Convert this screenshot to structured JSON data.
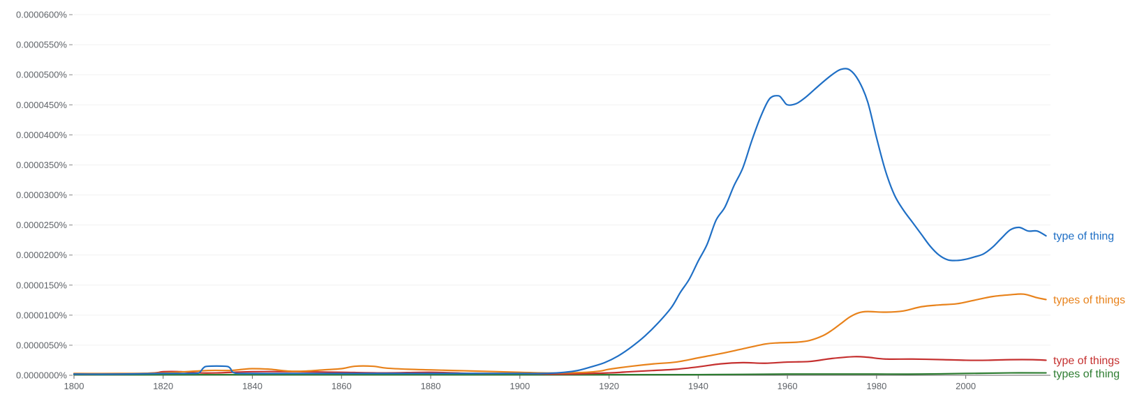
{
  "chart_data": {
    "type": "line",
    "title": "",
    "xlabel": "",
    "ylabel": "",
    "xlim": [
      1800,
      2019
    ],
    "ylim": [
      0,
      6e-05
    ],
    "grid": true,
    "legend": "inline-right",
    "x_ticks": [
      1800,
      1820,
      1840,
      1860,
      1880,
      1900,
      1920,
      1940,
      1960,
      1980,
      2000
    ],
    "y_ticks": [
      {
        "value": 0.0,
        "label": "0.0000000%"
      },
      {
        "value": 5e-06,
        "label": "0.0000050%"
      },
      {
        "value": 1e-05,
        "label": "0.0000100%"
      },
      {
        "value": 1.5e-05,
        "label": "0.0000150%"
      },
      {
        "value": 2e-05,
        "label": "0.0000200%"
      },
      {
        "value": 2.5e-05,
        "label": "0.0000250%"
      },
      {
        "value": 3e-05,
        "label": "0.0000300%"
      },
      {
        "value": 3.5e-05,
        "label": "0.0000350%"
      },
      {
        "value": 4e-05,
        "label": "0.0000400%"
      },
      {
        "value": 4.5e-05,
        "label": "0.0000450%"
      },
      {
        "value": 5e-05,
        "label": "0.0000500%"
      },
      {
        "value": 5.5e-05,
        "label": "0.0000550%"
      },
      {
        "value": 6e-05,
        "label": "0.0000600%"
      }
    ],
    "series": [
      {
        "name": "type of thing",
        "color": "#1f6fc5",
        "points": [
          [
            1800,
            2e-07
          ],
          [
            1810,
            2e-07
          ],
          [
            1820,
            3e-07
          ],
          [
            1826,
            3e-07
          ],
          [
            1828,
            4e-07
          ],
          [
            1829,
            1.2e-06
          ],
          [
            1830,
            1.5e-06
          ],
          [
            1834,
            1.5e-06
          ],
          [
            1835,
            1.2e-06
          ],
          [
            1836,
            4e-07
          ],
          [
            1840,
            3e-07
          ],
          [
            1860,
            3e-07
          ],
          [
            1880,
            3e-07
          ],
          [
            1900,
            3e-07
          ],
          [
            1905,
            3e-07
          ],
          [
            1910,
            5e-07
          ],
          [
            1913,
            8e-07
          ],
          [
            1916,
            1.4e-06
          ],
          [
            1919,
            2.1e-06
          ],
          [
            1922,
            3.2e-06
          ],
          [
            1925,
            4.7e-06
          ],
          [
            1928,
            6.5e-06
          ],
          [
            1931,
            8.7e-06
          ],
          [
            1934,
            1.13e-05
          ],
          [
            1936,
            1.38e-05
          ],
          [
            1938,
            1.6e-05
          ],
          [
            1940,
            1.9e-05
          ],
          [
            1942,
            2.18e-05
          ],
          [
            1944,
            2.58e-05
          ],
          [
            1946,
            2.8e-05
          ],
          [
            1948,
            3.15e-05
          ],
          [
            1950,
            3.45e-05
          ],
          [
            1952,
            3.9e-05
          ],
          [
            1954,
            4.3e-05
          ],
          [
            1956,
            4.6e-05
          ],
          [
            1958,
            4.65e-05
          ],
          [
            1959,
            4.58e-05
          ],
          [
            1960,
            4.5e-05
          ],
          [
            1962,
            4.52e-05
          ],
          [
            1964,
            4.62e-05
          ],
          [
            1966,
            4.75e-05
          ],
          [
            1968,
            4.88e-05
          ],
          [
            1970,
            5e-05
          ],
          [
            1972,
            5.09e-05
          ],
          [
            1974,
            5.08e-05
          ],
          [
            1976,
            4.9e-05
          ],
          [
            1978,
            4.55e-05
          ],
          [
            1980,
            3.95e-05
          ],
          [
            1982,
            3.4e-05
          ],
          [
            1984,
            3e-05
          ],
          [
            1986,
            2.75e-05
          ],
          [
            1988,
            2.55e-05
          ],
          [
            1990,
            2.35e-05
          ],
          [
            1992,
            2.15e-05
          ],
          [
            1994,
            2e-05
          ],
          [
            1996,
            1.92e-05
          ],
          [
            1998,
            1.91e-05
          ],
          [
            2000,
            1.93e-05
          ],
          [
            2002,
            1.97e-05
          ],
          [
            2004,
            2.02e-05
          ],
          [
            2006,
            2.13e-05
          ],
          [
            2008,
            2.28e-05
          ],
          [
            2010,
            2.42e-05
          ],
          [
            2012,
            2.46e-05
          ],
          [
            2014,
            2.4e-05
          ],
          [
            2016,
            2.4e-05
          ],
          [
            2018,
            2.32e-05
          ]
        ]
      },
      {
        "name": "types of things",
        "color": "#e8821b",
        "points": [
          [
            1800,
            3e-07
          ],
          [
            1810,
            3e-07
          ],
          [
            1820,
            4e-07
          ],
          [
            1830,
            8e-07
          ],
          [
            1835,
            8e-07
          ],
          [
            1838,
            1e-06
          ],
          [
            1840,
            1.1e-06
          ],
          [
            1844,
            1e-06
          ],
          [
            1848,
            7e-07
          ],
          [
            1852,
            7e-07
          ],
          [
            1856,
            9e-07
          ],
          [
            1860,
            1.1e-06
          ],
          [
            1863,
            1.5e-06
          ],
          [
            1867,
            1.5e-06
          ],
          [
            1870,
            1.2e-06
          ],
          [
            1875,
            1e-06
          ],
          [
            1880,
            9e-07
          ],
          [
            1885,
            8e-07
          ],
          [
            1890,
            7e-07
          ],
          [
            1900,
            5e-07
          ],
          [
            1905,
            4e-07
          ],
          [
            1910,
            4e-07
          ],
          [
            1915,
            5e-07
          ],
          [
            1918,
            7e-07
          ],
          [
            1920,
            1e-06
          ],
          [
            1925,
            1.5e-06
          ],
          [
            1930,
            1.9e-06
          ],
          [
            1935,
            2.2e-06
          ],
          [
            1940,
            2.9e-06
          ],
          [
            1945,
            3.6e-06
          ],
          [
            1950,
            4.4e-06
          ],
          [
            1955,
            5.2e-06
          ],
          [
            1958,
            5.4e-06
          ],
          [
            1962,
            5.5e-06
          ],
          [
            1965,
            5.8e-06
          ],
          [
            1968,
            6.6e-06
          ],
          [
            1970,
            7.5e-06
          ],
          [
            1972,
            8.6e-06
          ],
          [
            1974,
            9.7e-06
          ],
          [
            1976,
            1.04e-05
          ],
          [
            1978,
            1.06e-05
          ],
          [
            1982,
            1.05e-05
          ],
          [
            1986,
            1.07e-05
          ],
          [
            1990,
            1.14e-05
          ],
          [
            1994,
            1.17e-05
          ],
          [
            1998,
            1.19e-05
          ],
          [
            2002,
            1.25e-05
          ],
          [
            2006,
            1.31e-05
          ],
          [
            2010,
            1.34e-05
          ],
          [
            2013,
            1.35e-05
          ],
          [
            2016,
            1.29e-05
          ],
          [
            2018,
            1.26e-05
          ]
        ]
      },
      {
        "name": "type of things",
        "color": "#c5302f",
        "points": [
          [
            1800,
            2e-07
          ],
          [
            1810,
            2e-07
          ],
          [
            1818,
            4e-07
          ],
          [
            1820,
            6e-07
          ],
          [
            1824,
            6e-07
          ],
          [
            1828,
            4e-07
          ],
          [
            1832,
            4e-07
          ],
          [
            1840,
            6e-07
          ],
          [
            1850,
            6e-07
          ],
          [
            1860,
            5e-07
          ],
          [
            1870,
            4e-07
          ],
          [
            1880,
            5e-07
          ],
          [
            1890,
            3e-07
          ],
          [
            1900,
            3e-07
          ],
          [
            1910,
            2e-07
          ],
          [
            1920,
            4e-07
          ],
          [
            1925,
            6e-07
          ],
          [
            1930,
            8e-07
          ],
          [
            1935,
            1e-06
          ],
          [
            1940,
            1.4e-06
          ],
          [
            1945,
            1.9e-06
          ],
          [
            1950,
            2.1e-06
          ],
          [
            1955,
            2e-06
          ],
          [
            1960,
            2.2e-06
          ],
          [
            1965,
            2.3e-06
          ],
          [
            1970,
            2.8e-06
          ],
          [
            1975,
            3.1e-06
          ],
          [
            1978,
            3e-06
          ],
          [
            1982,
            2.7e-06
          ],
          [
            1988,
            2.7e-06
          ],
          [
            1995,
            2.6e-06
          ],
          [
            2000,
            2.5e-06
          ],
          [
            2005,
            2.5e-06
          ],
          [
            2010,
            2.6e-06
          ],
          [
            2015,
            2.6e-06
          ],
          [
            2018,
            2.5e-06
          ]
        ]
      },
      {
        "name": "types of thing",
        "color": "#2e7d32",
        "points": [
          [
            1800,
            1e-07
          ],
          [
            1850,
            1e-07
          ],
          [
            1900,
            1e-07
          ],
          [
            1920,
            1e-07
          ],
          [
            1940,
            1e-07
          ],
          [
            1960,
            2e-07
          ],
          [
            1980,
            2e-07
          ],
          [
            1990,
            2e-07
          ],
          [
            2000,
            3e-07
          ],
          [
            2010,
            4e-07
          ],
          [
            2018,
            4e-07
          ]
        ]
      }
    ]
  }
}
